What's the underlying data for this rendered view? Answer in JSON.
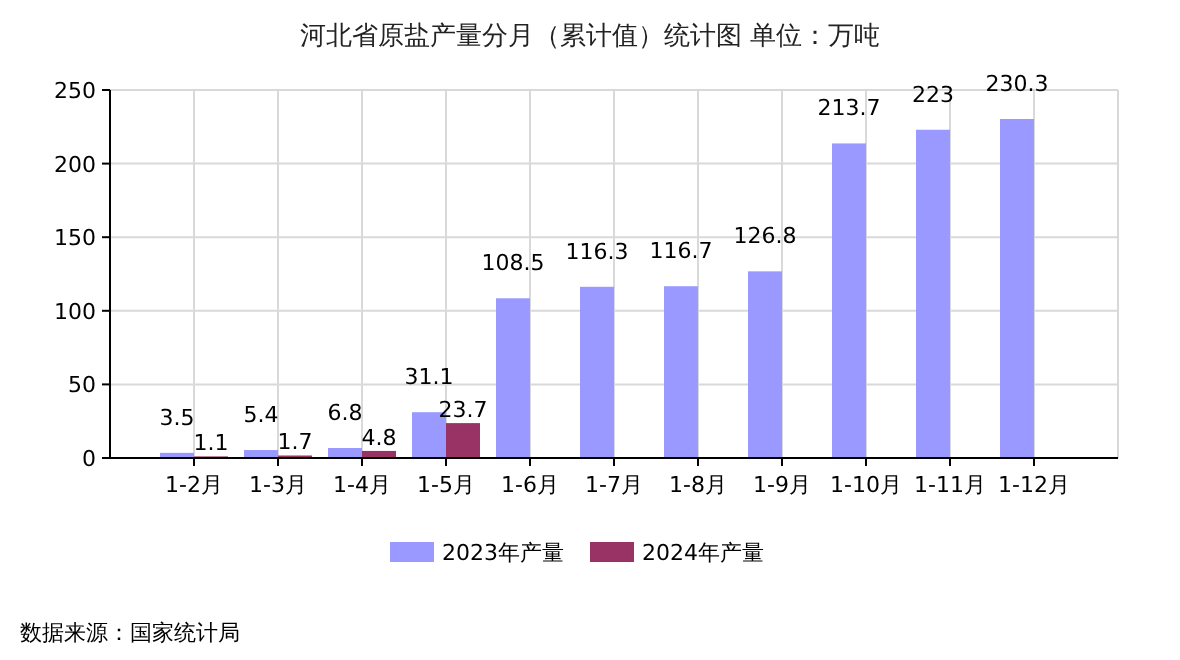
{
  "chart_data": {
    "type": "bar",
    "title": "河北省原盐产量分月（累计值）统计图 单位：万吨",
    "categories": [
      "1-2月",
      "1-3月",
      "1-4月",
      "1-5月",
      "1-6月",
      "1-7月",
      "1-8月",
      "1-9月",
      "1-10月",
      "1-11月",
      "1-12月"
    ],
    "series": [
      {
        "name": "2023年产量",
        "color": "#9999ff",
        "values": [
          3.5,
          5.4,
          6.8,
          31.1,
          108.5,
          116.3,
          116.7,
          126.8,
          213.7,
          223,
          230.3
        ]
      },
      {
        "name": "2024年产量",
        "color": "#993366",
        "values": [
          1.1,
          1.7,
          4.8,
          23.7,
          null,
          null,
          null,
          null,
          null,
          null,
          null
        ]
      }
    ],
    "ylim": [
      0,
      250
    ],
    "yticks": [
      0,
      50,
      100,
      150,
      200,
      250
    ],
    "grid": true,
    "legend": "bottom",
    "data_labels": true,
    "annotations": [
      "数据来源：国家统计局"
    ]
  }
}
